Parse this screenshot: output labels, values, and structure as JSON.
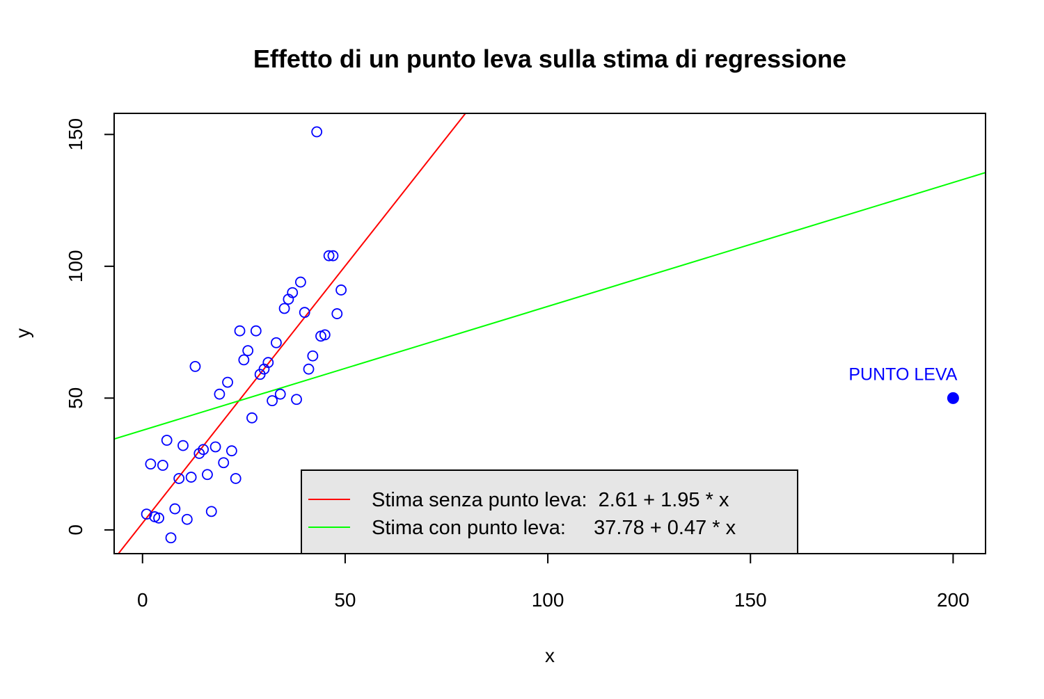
{
  "chart_data": {
    "type": "scatter",
    "title": "Effetto di un punto leva sulla stima di regressione",
    "xlabel": "x",
    "ylabel": "y",
    "xlim": [
      -7,
      208
    ],
    "ylim": [
      -9,
      158
    ],
    "x_ticks": [
      0,
      50,
      100,
      150,
      200
    ],
    "y_ticks": [
      0,
      50,
      100,
      150
    ],
    "grid": false,
    "legend_position": "bottom-center",
    "points": {
      "color": "#0000ff",
      "x": [
        1,
        2,
        3,
        4,
        5,
        6,
        7,
        8,
        9,
        10,
        11,
        12,
        13,
        14,
        15,
        16,
        17,
        18,
        19,
        20,
        21,
        22,
        23,
        24,
        25,
        26,
        27,
        28,
        29,
        30,
        31,
        32,
        33,
        34,
        35,
        36,
        37,
        38,
        39,
        40,
        41,
        42,
        43,
        44,
        45,
        46,
        47,
        48,
        49
      ],
      "y": [
        6,
        25,
        5,
        4.5,
        24.5,
        34,
        -3,
        8,
        19.5,
        32,
        4,
        20,
        62,
        29,
        30.5,
        21,
        7,
        31.5,
        51.5,
        25.5,
        56,
        30,
        19.5,
        75.5,
        64.5,
        68,
        42.5,
        75.5,
        59,
        61,
        63.5,
        49,
        71,
        51.5,
        84,
        87.5,
        90,
        49.5,
        94,
        82.5,
        61,
        66,
        151,
        73.5,
        74,
        104,
        104,
        82,
        91
      ]
    },
    "leverage_point": {
      "x": 200,
      "y": 50,
      "label": "PUNTO LEVA",
      "color": "#0000ff"
    },
    "lines": [
      {
        "name": "Stima senza punto leva:  2.61 + 1.95 * x",
        "intercept": 2.61,
        "slope": 1.95,
        "color": "#ff0000"
      },
      {
        "name": "Stima con punto leva:     37.78 + 0.47 * x",
        "intercept": 37.78,
        "slope": 0.47,
        "color": "#00ff00"
      }
    ],
    "legend_background": "#e6e6e6"
  }
}
